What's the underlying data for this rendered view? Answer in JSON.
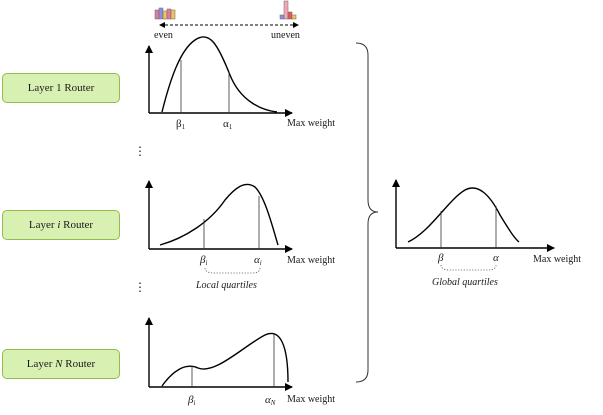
{
  "scale": {
    "left_label": "even",
    "right_label": "uneven"
  },
  "routers": [
    {
      "prefix": "Layer ",
      "index": "1",
      "suffix": " Router"
    },
    {
      "prefix": "Layer ",
      "index": "i",
      "suffix": " Router"
    },
    {
      "prefix": "Layer ",
      "index": "N",
      "suffix": " Router"
    }
  ],
  "plots": [
    {
      "xlabel": "Max weight",
      "beta": "β",
      "beta_sub": "1",
      "alpha": "α",
      "alpha_sub": "1"
    },
    {
      "xlabel": "Max weight",
      "beta": "β",
      "beta_sub": "i",
      "alpha": "α",
      "alpha_sub": "i",
      "bracket_label": "Local quartiles"
    },
    {
      "xlabel": "Max weight",
      "beta": "β",
      "beta_sub": "i",
      "alpha": "α",
      "alpha_sub": "N"
    }
  ],
  "global_plot": {
    "xlabel": "Max weight",
    "beta": "β",
    "alpha": "α",
    "bracket_label": "Global quartiles"
  },
  "ellipsis": "⋮",
  "colors": {
    "router_fill": "#d9f0b3",
    "router_border": "#8fbf4a",
    "hist_even": [
      "#e07aa0",
      "#8e8fe0",
      "#f1c15a",
      "#f1c15a"
    ],
    "hist_uneven": [
      "#8e8fe0",
      "#f4a6b6",
      "#e05a5a",
      "#f1c15a"
    ]
  }
}
